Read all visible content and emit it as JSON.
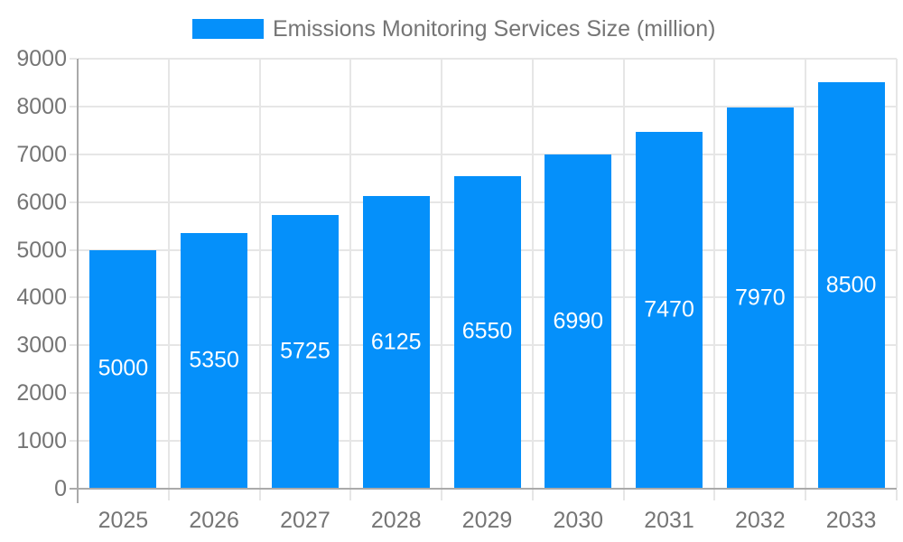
{
  "chart_data": {
    "type": "bar",
    "title": "Emissions Monitoring Services Size (million)",
    "categories": [
      "2025",
      "2026",
      "2027",
      "2028",
      "2029",
      "2030",
      "2031",
      "2032",
      "2033"
    ],
    "values": [
      5000,
      5350,
      5725,
      6125,
      6550,
      6990,
      7470,
      7970,
      8500
    ],
    "series": [
      {
        "name": "Emissions Monitoring Services Size (million)",
        "values": [
          5000,
          5350,
          5725,
          6125,
          6550,
          6990,
          7470,
          7970,
          8500
        ]
      }
    ],
    "xlabel": "",
    "ylabel": "",
    "ylim": [
      0,
      9000
    ],
    "y_tick_step": 1000,
    "y_tick_labels": [
      "0",
      "1000",
      "2000",
      "3000",
      "4000",
      "5000",
      "6000",
      "7000",
      "8000",
      "9000"
    ],
    "grid": true,
    "legend_position": "top",
    "bar_label_position": "center",
    "colors": {
      "bar": "#0590fa",
      "bar_label": "#ffffff",
      "axis_label": "#757575",
      "gridline": "#e6e6e6",
      "axis_line": "#aaaaaa"
    }
  },
  "legend": {
    "label": "Emissions Monitoring Services Size (million)"
  }
}
